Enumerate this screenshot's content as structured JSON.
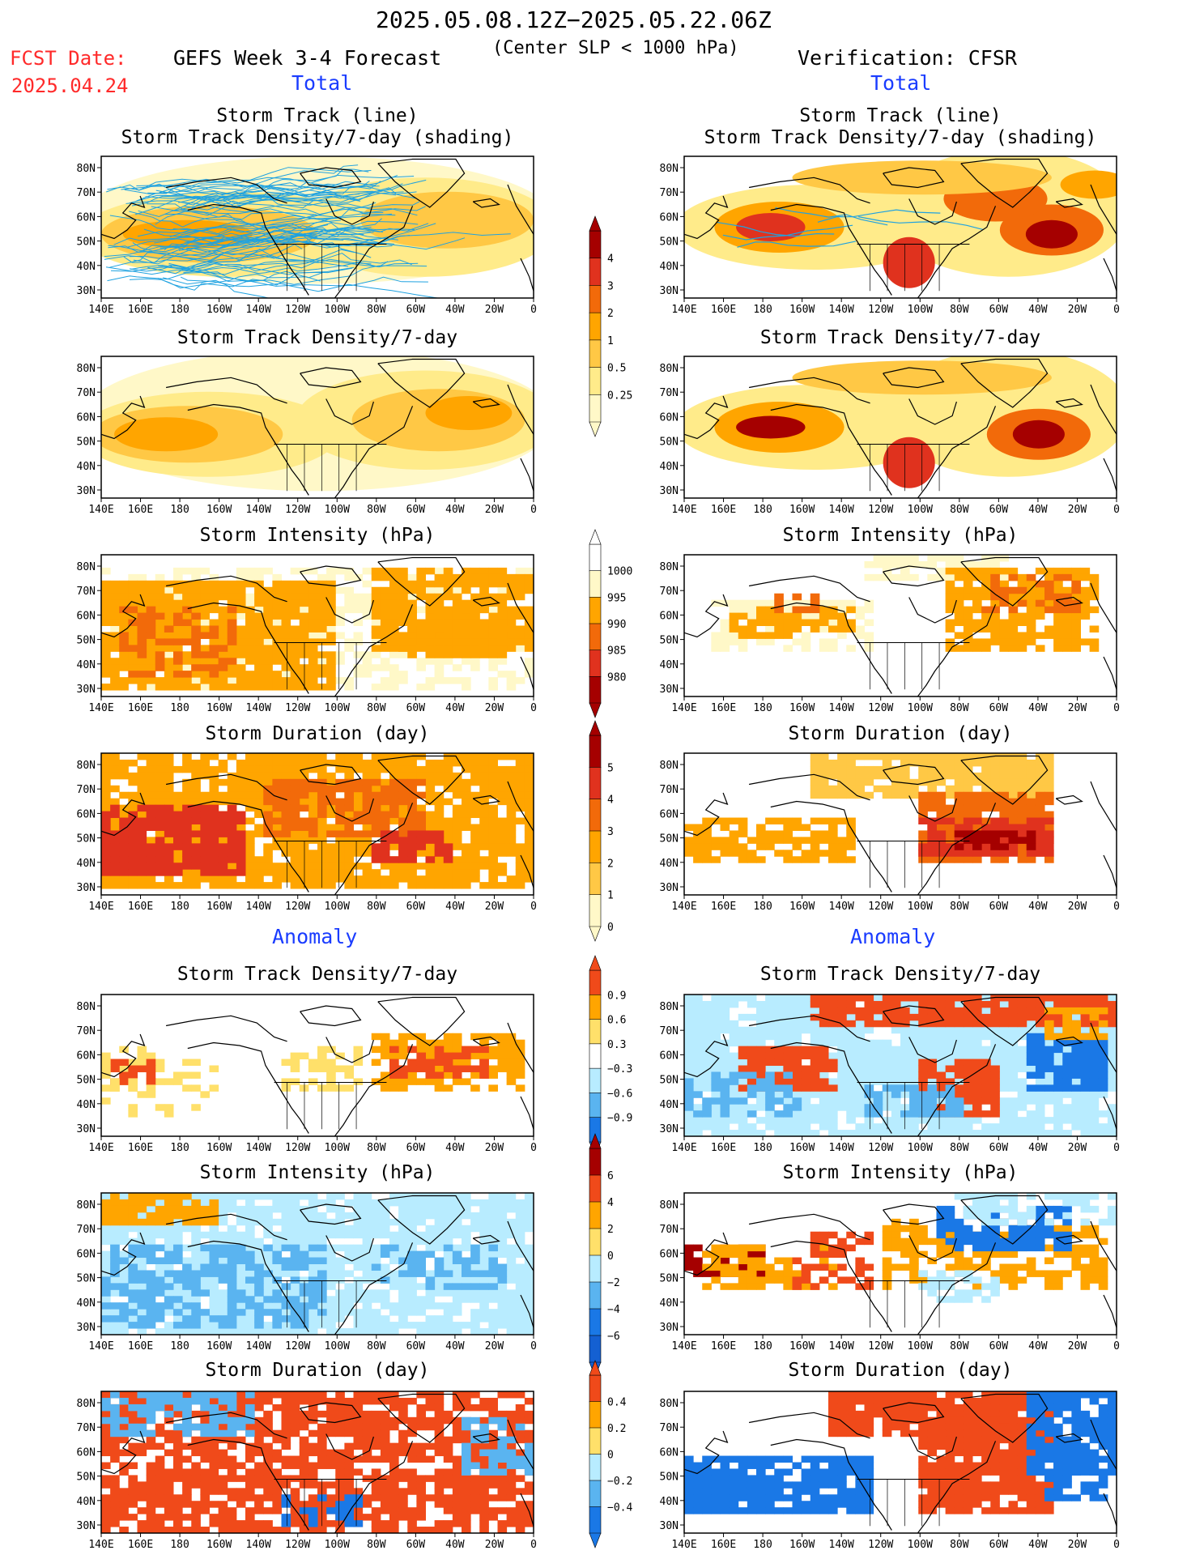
{
  "header": {
    "date_range": "2025.05.08.12Z−2025.05.22.06Z",
    "subtitle": "(Center SLP < 1000 hPa)",
    "fcst_label": "FCST Date:",
    "fcst_date": "2025.04.24",
    "left_title": "GEFS Week 3-4 Forecast",
    "right_title": "Verification: CFSR"
  },
  "sections": {
    "total": "Total",
    "anomaly": "Anomaly"
  },
  "panel_titles": {
    "track_line": "Storm Track (line)",
    "track_shading": "Storm Track Density/7-day (shading)",
    "density": "Storm Track Density/7-day",
    "intensity": "Storm Intensity (hPa)",
    "duration": "Storm Duration (day)"
  },
  "axes": {
    "lon_labels": [
      "140E",
      "160E",
      "180",
      "160W",
      "140W",
      "120W",
      "100W",
      "80W",
      "60W",
      "40W",
      "20W",
      "0"
    ],
    "lat_labels": [
      "80N",
      "70N",
      "60N",
      "50N",
      "40N",
      "30N"
    ]
  },
  "colorbars": {
    "density": {
      "labels": [
        "4",
        "3",
        "2",
        "1",
        "0.5",
        "0.25"
      ],
      "colors": [
        "#a50000",
        "#e0321e",
        "#f26a0a",
        "#ffa500",
        "#ffc845",
        "#ffeb8a",
        "#fff8c8"
      ]
    },
    "intensity": {
      "labels": [
        "1000",
        "995",
        "990",
        "985",
        "980"
      ],
      "colors": [
        "#ffffff",
        "#fff8c8",
        "#ffa500",
        "#f26a0a",
        "#e0321e",
        "#a50000"
      ]
    },
    "duration": {
      "labels": [
        "5",
        "4",
        "3",
        "2",
        "1",
        "0"
      ],
      "colors": [
        "#a50000",
        "#e0321e",
        "#f26a0a",
        "#ffa500",
        "#ffc845",
        "#fff8c8"
      ]
    },
    "anom_density": {
      "labels": [
        "0.9",
        "0.6",
        "0.3",
        "−0.3",
        "−0.6",
        "−0.9"
      ],
      "colors": [
        "#f04a1a",
        "#ffa500",
        "#ffe06a",
        "#ffffff",
        "#b8ecff",
        "#5ab4f0",
        "#1a78e6"
      ]
    },
    "anom_intensity": {
      "labels": [
        "6",
        "4",
        "2",
        "0",
        "−2",
        "−4",
        "−6"
      ],
      "colors": [
        "#a50000",
        "#f04a1a",
        "#ffa500",
        "#ffe06a",
        "#b8ecff",
        "#5ab4f0",
        "#1a78e6",
        "#1460d2"
      ]
    },
    "anom_duration": {
      "labels": [
        "0.4",
        "0.2",
        "0",
        "−0.2",
        "−0.4"
      ],
      "colors": [
        "#f04a1a",
        "#ffa500",
        "#ffe06a",
        "#b8ecff",
        "#5ab4f0",
        "#1a78e6"
      ]
    }
  }
}
